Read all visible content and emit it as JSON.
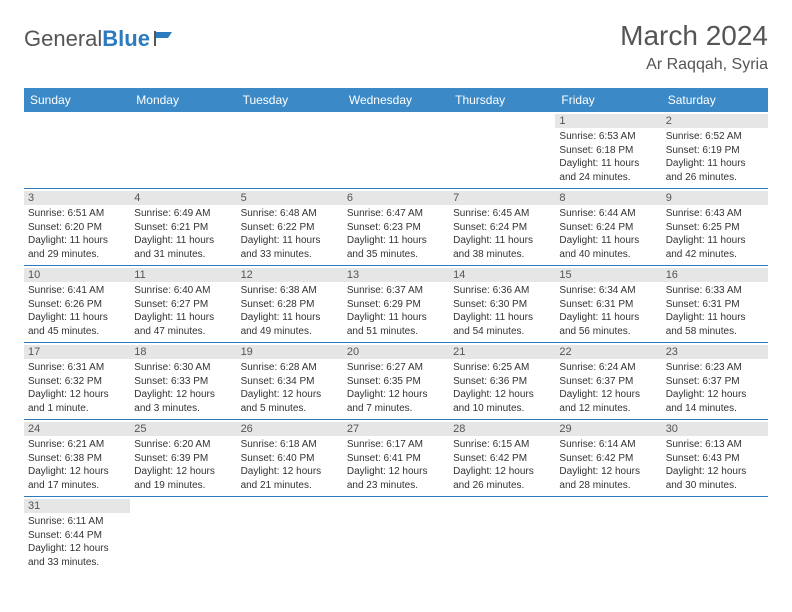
{
  "logo": {
    "main": "General",
    "sub": "Blue"
  },
  "title": "March 2024",
  "location": "Ar Raqqah, Syria",
  "colors": {
    "header_bg": "#3b89c7",
    "header_text": "#ffffff",
    "daynum_bg": "#e6e6e6",
    "border": "#2c7bbf",
    "text": "#333333",
    "title_text": "#555555"
  },
  "day_headers": [
    "Sunday",
    "Monday",
    "Tuesday",
    "Wednesday",
    "Thursday",
    "Friday",
    "Saturday"
  ],
  "weeks": [
    [
      null,
      null,
      null,
      null,
      null,
      {
        "n": "1",
        "sr": "6:53 AM",
        "ss": "6:18 PM",
        "dl": "11 hours and 24 minutes."
      },
      {
        "n": "2",
        "sr": "6:52 AM",
        "ss": "6:19 PM",
        "dl": "11 hours and 26 minutes."
      }
    ],
    [
      {
        "n": "3",
        "sr": "6:51 AM",
        "ss": "6:20 PM",
        "dl": "11 hours and 29 minutes."
      },
      {
        "n": "4",
        "sr": "6:49 AM",
        "ss": "6:21 PM",
        "dl": "11 hours and 31 minutes."
      },
      {
        "n": "5",
        "sr": "6:48 AM",
        "ss": "6:22 PM",
        "dl": "11 hours and 33 minutes."
      },
      {
        "n": "6",
        "sr": "6:47 AM",
        "ss": "6:23 PM",
        "dl": "11 hours and 35 minutes."
      },
      {
        "n": "7",
        "sr": "6:45 AM",
        "ss": "6:24 PM",
        "dl": "11 hours and 38 minutes."
      },
      {
        "n": "8",
        "sr": "6:44 AM",
        "ss": "6:24 PM",
        "dl": "11 hours and 40 minutes."
      },
      {
        "n": "9",
        "sr": "6:43 AM",
        "ss": "6:25 PM",
        "dl": "11 hours and 42 minutes."
      }
    ],
    [
      {
        "n": "10",
        "sr": "6:41 AM",
        "ss": "6:26 PM",
        "dl": "11 hours and 45 minutes."
      },
      {
        "n": "11",
        "sr": "6:40 AM",
        "ss": "6:27 PM",
        "dl": "11 hours and 47 minutes."
      },
      {
        "n": "12",
        "sr": "6:38 AM",
        "ss": "6:28 PM",
        "dl": "11 hours and 49 minutes."
      },
      {
        "n": "13",
        "sr": "6:37 AM",
        "ss": "6:29 PM",
        "dl": "11 hours and 51 minutes."
      },
      {
        "n": "14",
        "sr": "6:36 AM",
        "ss": "6:30 PM",
        "dl": "11 hours and 54 minutes."
      },
      {
        "n": "15",
        "sr": "6:34 AM",
        "ss": "6:31 PM",
        "dl": "11 hours and 56 minutes."
      },
      {
        "n": "16",
        "sr": "6:33 AM",
        "ss": "6:31 PM",
        "dl": "11 hours and 58 minutes."
      }
    ],
    [
      {
        "n": "17",
        "sr": "6:31 AM",
        "ss": "6:32 PM",
        "dl": "12 hours and 1 minute."
      },
      {
        "n": "18",
        "sr": "6:30 AM",
        "ss": "6:33 PM",
        "dl": "12 hours and 3 minutes."
      },
      {
        "n": "19",
        "sr": "6:28 AM",
        "ss": "6:34 PM",
        "dl": "12 hours and 5 minutes."
      },
      {
        "n": "20",
        "sr": "6:27 AM",
        "ss": "6:35 PM",
        "dl": "12 hours and 7 minutes."
      },
      {
        "n": "21",
        "sr": "6:25 AM",
        "ss": "6:36 PM",
        "dl": "12 hours and 10 minutes."
      },
      {
        "n": "22",
        "sr": "6:24 AM",
        "ss": "6:37 PM",
        "dl": "12 hours and 12 minutes."
      },
      {
        "n": "23",
        "sr": "6:23 AM",
        "ss": "6:37 PM",
        "dl": "12 hours and 14 minutes."
      }
    ],
    [
      {
        "n": "24",
        "sr": "6:21 AM",
        "ss": "6:38 PM",
        "dl": "12 hours and 17 minutes."
      },
      {
        "n": "25",
        "sr": "6:20 AM",
        "ss": "6:39 PM",
        "dl": "12 hours and 19 minutes."
      },
      {
        "n": "26",
        "sr": "6:18 AM",
        "ss": "6:40 PM",
        "dl": "12 hours and 21 minutes."
      },
      {
        "n": "27",
        "sr": "6:17 AM",
        "ss": "6:41 PM",
        "dl": "12 hours and 23 minutes."
      },
      {
        "n": "28",
        "sr": "6:15 AM",
        "ss": "6:42 PM",
        "dl": "12 hours and 26 minutes."
      },
      {
        "n": "29",
        "sr": "6:14 AM",
        "ss": "6:42 PM",
        "dl": "12 hours and 28 minutes."
      },
      {
        "n": "30",
        "sr": "6:13 AM",
        "ss": "6:43 PM",
        "dl": "12 hours and 30 minutes."
      }
    ],
    [
      {
        "n": "31",
        "sr": "6:11 AM",
        "ss": "6:44 PM",
        "dl": "12 hours and 33 minutes."
      },
      null,
      null,
      null,
      null,
      null,
      null
    ]
  ],
  "labels": {
    "sunrise": "Sunrise:",
    "sunset": "Sunset:",
    "daylight": "Daylight:"
  }
}
